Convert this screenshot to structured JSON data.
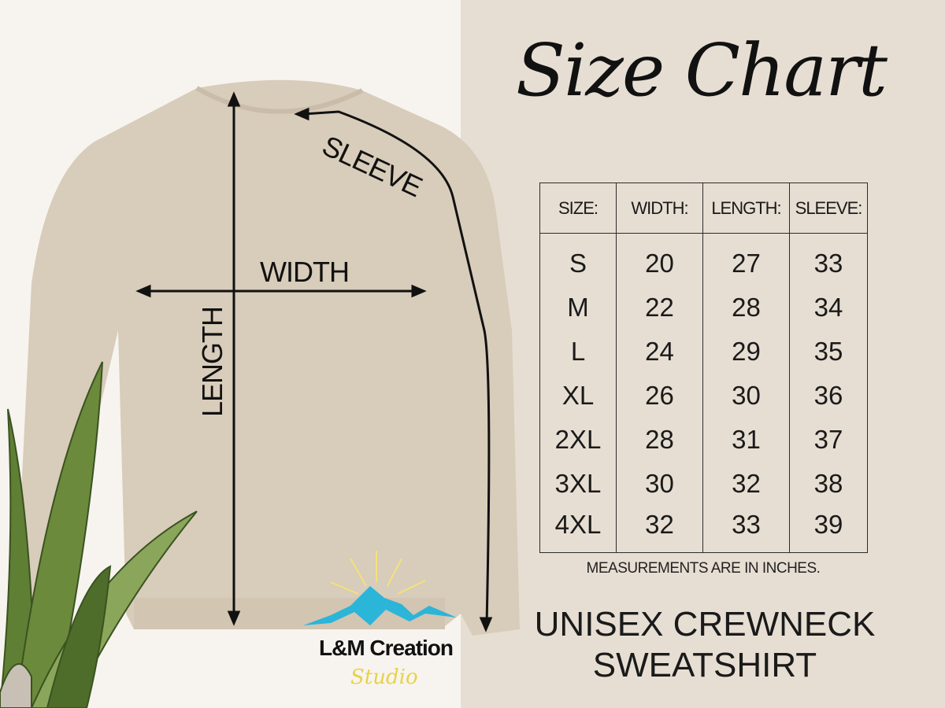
{
  "title": "Size Chart",
  "diagram_labels": {
    "sleeve": "SLEEVE",
    "width": "WIDTH",
    "length": "LENGTH"
  },
  "table": {
    "headers": [
      "SIZE:",
      "WIDTH:",
      "LENGTH:",
      "SLEEVE:"
    ],
    "rows": [
      [
        "S",
        "20",
        "27",
        "33"
      ],
      [
        "M",
        "22",
        "28",
        "34"
      ],
      [
        "L",
        "24",
        "29",
        "35"
      ],
      [
        "XL",
        "26",
        "30",
        "36"
      ],
      [
        "2XL",
        "28",
        "31",
        "37"
      ],
      [
        "3XL",
        "30",
        "32",
        "38"
      ],
      [
        "4XL",
        "32",
        "33",
        "39"
      ]
    ]
  },
  "note": "MEASUREMENTS ARE IN INCHES.",
  "product": {
    "line1": "UNISEX CREWNECK",
    "line2": "SWEATSHIRT"
  },
  "logo": {
    "name": "L&M Creation",
    "sub": "Studio"
  },
  "colors": {
    "background": "#e7ded3",
    "sweatshirt": "#d8ccba",
    "logo_mountain": "#2bb5d8",
    "logo_sun": "#f3e27a"
  }
}
